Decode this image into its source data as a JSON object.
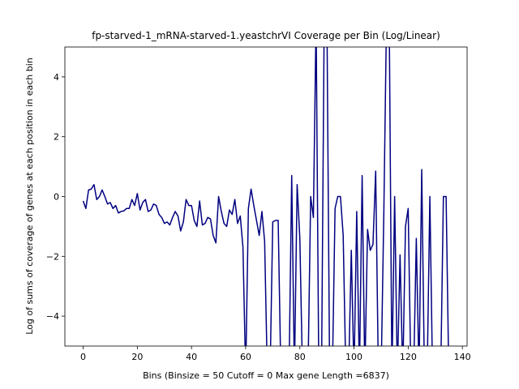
{
  "chart_data": {
    "type": "line",
    "title": "fp-starved-1_mRNA-starved-1.yeastchrVI Coverage per Bin (Log/Linear)",
    "xlabel": "Bins  (Binsize = 50 Cutoff = 0 Max gene Length =6837)",
    "ylabel": "Log of sums of coverage of genes at each position in each bin",
    "xlim": [
      -6.75,
      141.75
    ],
    "ylim": [
      -5,
      5
    ],
    "xticks": [
      0,
      20,
      40,
      60,
      80,
      100,
      120,
      140
    ],
    "yticks": [
      -4,
      -2,
      0,
      2,
      4
    ],
    "xtick_labels": [
      "0",
      "20",
      "40",
      "60",
      "80",
      "100",
      "120",
      "140"
    ],
    "ytick_labels": [
      "−4",
      "−2",
      "0",
      "2",
      "4"
    ],
    "grid": false,
    "line_color": "#000080",
    "series": [
      {
        "x": [
          0,
          1,
          2,
          3,
          4,
          5,
          6,
          7,
          8,
          9,
          10,
          11,
          12,
          13,
          14,
          15,
          16,
          17,
          18,
          19,
          20,
          21,
          22,
          23,
          24,
          25,
          26,
          27,
          28,
          29,
          30,
          31,
          32,
          33,
          34,
          35,
          36,
          37,
          38,
          39,
          40,
          41,
          42,
          43,
          44,
          45,
          46,
          47,
          48,
          49,
          50,
          51,
          52,
          53,
          54,
          55,
          56,
          57,
          58,
          59,
          60,
          61,
          62,
          63,
          64,
          65,
          66,
          67,
          68,
          69,
          70,
          71,
          72,
          73,
          74,
          75,
          76,
          77,
          78,
          79,
          80,
          81,
          82,
          83,
          84,
          85,
          86,
          87,
          88,
          89,
          90,
          91,
          92,
          93,
          94,
          95,
          96,
          97,
          98,
          99,
          100,
          101,
          102,
          103,
          104,
          105,
          106,
          107,
          108,
          109,
          110,
          111,
          112,
          113,
          114,
          115,
          116,
          117,
          118,
          119,
          120,
          121,
          122,
          123,
          124,
          125,
          126,
          127,
          128,
          129,
          130,
          131,
          132,
          133,
          134,
          135
        ],
        "y": [
          -0.15,
          -0.4,
          0.22,
          0.25,
          0.4,
          -0.1,
          0.0,
          0.22,
          0.0,
          -0.25,
          -0.2,
          -0.4,
          -0.3,
          -0.55,
          -0.5,
          -0.48,
          -0.4,
          -0.4,
          -0.1,
          -0.3,
          0.1,
          -0.45,
          -0.2,
          -0.1,
          -0.5,
          -0.45,
          -0.25,
          -0.3,
          -0.6,
          -0.7,
          -0.9,
          -0.85,
          -0.95,
          -0.7,
          -0.5,
          -0.65,
          -1.15,
          -0.85,
          -0.1,
          -0.3,
          -0.3,
          -0.8,
          -1.0,
          -0.15,
          -0.95,
          -0.9,
          -0.7,
          -0.75,
          -1.3,
          -1.55,
          0.0,
          -0.5,
          -0.9,
          -1.0,
          -0.45,
          -0.6,
          -0.1,
          -0.9,
          -0.65,
          -1.7,
          -6,
          -0.4,
          0.25,
          -0.3,
          -0.8,
          -1.3,
          -0.5,
          -1.5,
          -6,
          -6,
          -0.85,
          -0.8,
          -0.8,
          -6,
          -6,
          -6,
          -6,
          0.7,
          -6,
          0.4,
          -1.4,
          -6,
          -6,
          -6,
          0.0,
          -0.7,
          6,
          -6,
          -6,
          6,
          6,
          -6,
          -6,
          -0.4,
          0.0,
          0.0,
          -1.3,
          -6,
          -6,
          -1.8,
          -6,
          -0.5,
          -6,
          0.7,
          -6,
          -1.1,
          -1.8,
          -1.6,
          0.85,
          -6,
          -6,
          -0.6,
          6,
          6,
          -6,
          0.0,
          -6,
          -1.95,
          -6,
          -1.0,
          -0.4,
          -6,
          -6,
          -1.4,
          -6,
          0.9,
          -6,
          -6,
          0.0,
          -6,
          -6,
          -6,
          -6,
          0.0,
          0.0,
          -6
        ]
      }
    ]
  }
}
